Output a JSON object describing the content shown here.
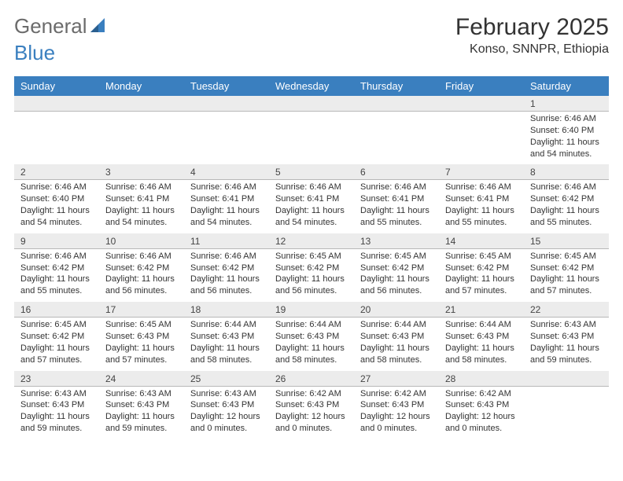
{
  "logo": {
    "word1": "General",
    "word2": "Blue"
  },
  "title": "February 2025",
  "location": "Konso, SNNPR, Ethiopia",
  "colors": {
    "header_bg": "#3a7fbf",
    "header_fg": "#ffffff",
    "daynum_bg": "#ececec",
    "text": "#333333",
    "logo_gray": "#6b6b6b",
    "logo_blue": "#3a7fbf"
  },
  "day_headers": [
    "Sunday",
    "Monday",
    "Tuesday",
    "Wednesday",
    "Thursday",
    "Friday",
    "Saturday"
  ],
  "weeks": [
    [
      {
        "n": "",
        "r": "",
        "s": "",
        "d": ""
      },
      {
        "n": "",
        "r": "",
        "s": "",
        "d": ""
      },
      {
        "n": "",
        "r": "",
        "s": "",
        "d": ""
      },
      {
        "n": "",
        "r": "",
        "s": "",
        "d": ""
      },
      {
        "n": "",
        "r": "",
        "s": "",
        "d": ""
      },
      {
        "n": "",
        "r": "",
        "s": "",
        "d": ""
      },
      {
        "n": "1",
        "r": "Sunrise: 6:46 AM",
        "s": "Sunset: 6:40 PM",
        "d": "Daylight: 11 hours and 54 minutes."
      }
    ],
    [
      {
        "n": "2",
        "r": "Sunrise: 6:46 AM",
        "s": "Sunset: 6:40 PM",
        "d": "Daylight: 11 hours and 54 minutes."
      },
      {
        "n": "3",
        "r": "Sunrise: 6:46 AM",
        "s": "Sunset: 6:41 PM",
        "d": "Daylight: 11 hours and 54 minutes."
      },
      {
        "n": "4",
        "r": "Sunrise: 6:46 AM",
        "s": "Sunset: 6:41 PM",
        "d": "Daylight: 11 hours and 54 minutes."
      },
      {
        "n": "5",
        "r": "Sunrise: 6:46 AM",
        "s": "Sunset: 6:41 PM",
        "d": "Daylight: 11 hours and 54 minutes."
      },
      {
        "n": "6",
        "r": "Sunrise: 6:46 AM",
        "s": "Sunset: 6:41 PM",
        "d": "Daylight: 11 hours and 55 minutes."
      },
      {
        "n": "7",
        "r": "Sunrise: 6:46 AM",
        "s": "Sunset: 6:41 PM",
        "d": "Daylight: 11 hours and 55 minutes."
      },
      {
        "n": "8",
        "r": "Sunrise: 6:46 AM",
        "s": "Sunset: 6:42 PM",
        "d": "Daylight: 11 hours and 55 minutes."
      }
    ],
    [
      {
        "n": "9",
        "r": "Sunrise: 6:46 AM",
        "s": "Sunset: 6:42 PM",
        "d": "Daylight: 11 hours and 55 minutes."
      },
      {
        "n": "10",
        "r": "Sunrise: 6:46 AM",
        "s": "Sunset: 6:42 PM",
        "d": "Daylight: 11 hours and 56 minutes."
      },
      {
        "n": "11",
        "r": "Sunrise: 6:46 AM",
        "s": "Sunset: 6:42 PM",
        "d": "Daylight: 11 hours and 56 minutes."
      },
      {
        "n": "12",
        "r": "Sunrise: 6:45 AM",
        "s": "Sunset: 6:42 PM",
        "d": "Daylight: 11 hours and 56 minutes."
      },
      {
        "n": "13",
        "r": "Sunrise: 6:45 AM",
        "s": "Sunset: 6:42 PM",
        "d": "Daylight: 11 hours and 56 minutes."
      },
      {
        "n": "14",
        "r": "Sunrise: 6:45 AM",
        "s": "Sunset: 6:42 PM",
        "d": "Daylight: 11 hours and 57 minutes."
      },
      {
        "n": "15",
        "r": "Sunrise: 6:45 AM",
        "s": "Sunset: 6:42 PM",
        "d": "Daylight: 11 hours and 57 minutes."
      }
    ],
    [
      {
        "n": "16",
        "r": "Sunrise: 6:45 AM",
        "s": "Sunset: 6:42 PM",
        "d": "Daylight: 11 hours and 57 minutes."
      },
      {
        "n": "17",
        "r": "Sunrise: 6:45 AM",
        "s": "Sunset: 6:43 PM",
        "d": "Daylight: 11 hours and 57 minutes."
      },
      {
        "n": "18",
        "r": "Sunrise: 6:44 AM",
        "s": "Sunset: 6:43 PM",
        "d": "Daylight: 11 hours and 58 minutes."
      },
      {
        "n": "19",
        "r": "Sunrise: 6:44 AM",
        "s": "Sunset: 6:43 PM",
        "d": "Daylight: 11 hours and 58 minutes."
      },
      {
        "n": "20",
        "r": "Sunrise: 6:44 AM",
        "s": "Sunset: 6:43 PM",
        "d": "Daylight: 11 hours and 58 minutes."
      },
      {
        "n": "21",
        "r": "Sunrise: 6:44 AM",
        "s": "Sunset: 6:43 PM",
        "d": "Daylight: 11 hours and 58 minutes."
      },
      {
        "n": "22",
        "r": "Sunrise: 6:43 AM",
        "s": "Sunset: 6:43 PM",
        "d": "Daylight: 11 hours and 59 minutes."
      }
    ],
    [
      {
        "n": "23",
        "r": "Sunrise: 6:43 AM",
        "s": "Sunset: 6:43 PM",
        "d": "Daylight: 11 hours and 59 minutes."
      },
      {
        "n": "24",
        "r": "Sunrise: 6:43 AM",
        "s": "Sunset: 6:43 PM",
        "d": "Daylight: 11 hours and 59 minutes."
      },
      {
        "n": "25",
        "r": "Sunrise: 6:43 AM",
        "s": "Sunset: 6:43 PM",
        "d": "Daylight: 12 hours and 0 minutes."
      },
      {
        "n": "26",
        "r": "Sunrise: 6:42 AM",
        "s": "Sunset: 6:43 PM",
        "d": "Daylight: 12 hours and 0 minutes."
      },
      {
        "n": "27",
        "r": "Sunrise: 6:42 AM",
        "s": "Sunset: 6:43 PM",
        "d": "Daylight: 12 hours and 0 minutes."
      },
      {
        "n": "28",
        "r": "Sunrise: 6:42 AM",
        "s": "Sunset: 6:43 PM",
        "d": "Daylight: 12 hours and 0 minutes."
      },
      {
        "n": "",
        "r": "",
        "s": "",
        "d": ""
      }
    ]
  ]
}
